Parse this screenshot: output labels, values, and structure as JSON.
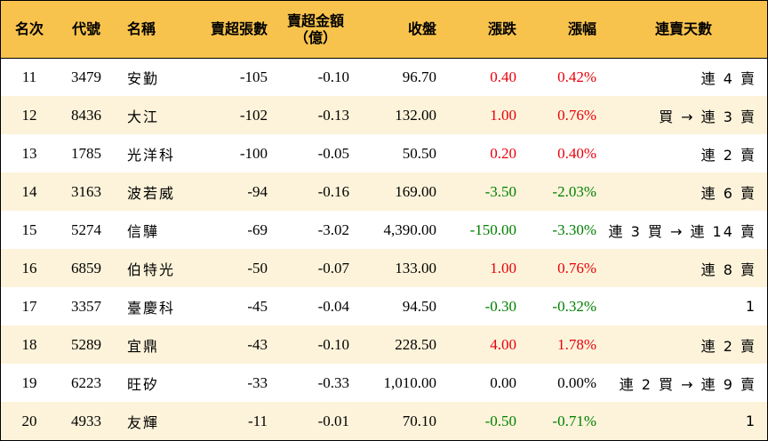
{
  "headers": {
    "rank": "名次",
    "code": "代號",
    "name": "名稱",
    "sell_lots": "賣超張數",
    "sell_amount_line1": "賣超金額",
    "sell_amount_line2": "（億）",
    "close": "收盤",
    "change": "漲跌",
    "pct": "漲幅",
    "streak": "連賣天數"
  },
  "colors": {
    "header_bg": "#f8c34d",
    "odd_row_bg": "#fdf3da",
    "up": "#e8000b",
    "down": "#008000"
  },
  "rows": [
    {
      "rank": "11",
      "code": "3479",
      "name": "安勤",
      "sell_lots": "-105",
      "sell_amount": "-0.10",
      "close": "96.70",
      "change": "0.40",
      "pct": "0.42%",
      "dir": "up",
      "streak": "連 4 賣"
    },
    {
      "rank": "12",
      "code": "8436",
      "name": "大江",
      "sell_lots": "-102",
      "sell_amount": "-0.13",
      "close": "132.00",
      "change": "1.00",
      "pct": "0.76%",
      "dir": "up",
      "streak": "買 → 連 3 賣"
    },
    {
      "rank": "13",
      "code": "1785",
      "name": "光洋科",
      "sell_lots": "-100",
      "sell_amount": "-0.05",
      "close": "50.50",
      "change": "0.20",
      "pct": "0.40%",
      "dir": "up",
      "streak": "連 2 賣"
    },
    {
      "rank": "14",
      "code": "3163",
      "name": "波若威",
      "sell_lots": "-94",
      "sell_amount": "-0.16",
      "close": "169.00",
      "change": "-3.50",
      "pct": "-2.03%",
      "dir": "down",
      "streak": "連 6 賣"
    },
    {
      "rank": "15",
      "code": "5274",
      "name": "信驊",
      "sell_lots": "-69",
      "sell_amount": "-3.02",
      "close": "4,390.00",
      "change": "-150.00",
      "pct": "-3.30%",
      "dir": "down",
      "streak": "連 3 買 → 連 14 賣"
    },
    {
      "rank": "16",
      "code": "6859",
      "name": "伯特光",
      "sell_lots": "-50",
      "sell_amount": "-0.07",
      "close": "133.00",
      "change": "1.00",
      "pct": "0.76%",
      "dir": "up",
      "streak": "連 8 賣"
    },
    {
      "rank": "17",
      "code": "3357",
      "name": "臺慶科",
      "sell_lots": "-45",
      "sell_amount": "-0.04",
      "close": "94.50",
      "change": "-0.30",
      "pct": "-0.32%",
      "dir": "down",
      "streak": "1"
    },
    {
      "rank": "18",
      "code": "5289",
      "name": "宜鼎",
      "sell_lots": "-43",
      "sell_amount": "-0.10",
      "close": "228.50",
      "change": "4.00",
      "pct": "1.78%",
      "dir": "up",
      "streak": "連 2 賣"
    },
    {
      "rank": "19",
      "code": "6223",
      "name": "旺矽",
      "sell_lots": "-33",
      "sell_amount": "-0.33",
      "close": "1,010.00",
      "change": "0.00",
      "pct": "0.00%",
      "dir": "flat",
      "streak": "連 2 買 → 連 9 賣"
    },
    {
      "rank": "20",
      "code": "4933",
      "name": "友輝",
      "sell_lots": "-11",
      "sell_amount": "-0.01",
      "close": "70.10",
      "change": "-0.50",
      "pct": "-0.71%",
      "dir": "down",
      "streak": "1"
    }
  ]
}
